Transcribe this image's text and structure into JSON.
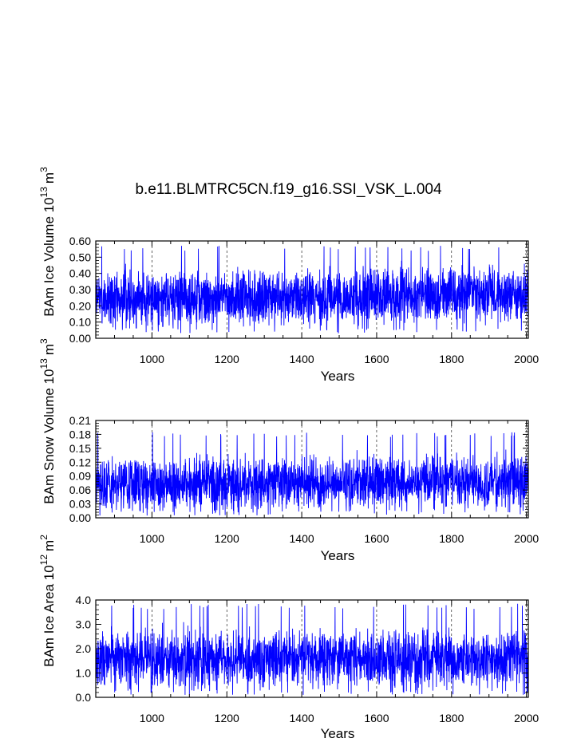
{
  "title": "b.e11.BLMTRC5CN.f19_g16.SSI_VSK_L.004",
  "chart_data": [
    {
      "type": "line",
      "ylabel_text": "BAm Ice Volume 10",
      "ylabel_exp": "13",
      "ylabel_unit": "m",
      "ylabel_unit_exp": "3",
      "xlabel": "Years",
      "xlim": [
        850,
        2005
      ],
      "ylim": [
        0,
        0.6
      ],
      "xticks": [
        "1000",
        "1200",
        "1400",
        "1600",
        "1800",
        "2000"
      ],
      "yticks": [
        "0.00",
        "0.10",
        "0.20",
        "0.30",
        "0.40",
        "0.50",
        "0.60"
      ],
      "series": [
        {
          "name": "Ice Volume",
          "color": "#0000ff",
          "mean": 0.24,
          "low": 0.03,
          "high": 0.57,
          "trend": 0.03
        }
      ]
    },
    {
      "type": "line",
      "ylabel_text": "BAm Snow Volume 10",
      "ylabel_exp": "13",
      "ylabel_unit": "m",
      "ylabel_unit_exp": "3",
      "xlabel": "Years",
      "xlim": [
        850,
        2005
      ],
      "ylim": [
        0,
        0.21
      ],
      "xticks": [
        "1000",
        "1200",
        "1400",
        "1600",
        "1800",
        "2000"
      ],
      "yticks": [
        "0.00",
        "0.03",
        "0.06",
        "0.09",
        "0.12",
        "0.15",
        "0.18",
        "0.21"
      ],
      "series": [
        {
          "name": "Snow Volume",
          "color": "#0000ff",
          "mean": 0.07,
          "low": 0.005,
          "high": 0.185,
          "trend": 0.01
        }
      ]
    },
    {
      "type": "line",
      "ylabel_text": "BAm Ice Area 10",
      "ylabel_exp": "12",
      "ylabel_unit": "m",
      "ylabel_unit_exp": "2",
      "xlabel": "Years",
      "xlim": [
        850,
        2005
      ],
      "ylim": [
        0,
        4.0
      ],
      "xticks": [
        "1000",
        "1200",
        "1400",
        "1600",
        "1800",
        "2000"
      ],
      "yticks": [
        "0.0",
        "1.0",
        "2.0",
        "3.0",
        "4.0"
      ],
      "series": [
        {
          "name": "Ice Area",
          "color": "#0000ff",
          "mean": 1.6,
          "low": 0.1,
          "high": 3.85,
          "trend": 0.0
        }
      ]
    }
  ]
}
